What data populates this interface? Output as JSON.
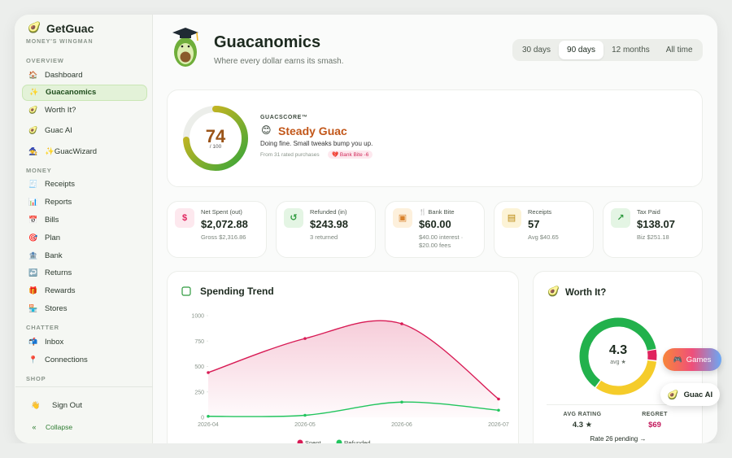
{
  "sidebar": {
    "brand": "GetGuac",
    "brand_icon": "🥑",
    "tagline": "MONEY'S WINGMAN",
    "sections": [
      {
        "title": "OVERVIEW",
        "items": [
          {
            "icon": "🏠",
            "label": "Dashboard"
          },
          {
            "icon": "✨",
            "label": "Guacanomics",
            "active": true
          },
          {
            "icon": "🥑",
            "label": "Worth It?"
          },
          {
            "icon": "🥑",
            "label": "Guac AI"
          },
          {
            "icon": "🧙",
            "label": "✨GuacWizard"
          }
        ]
      },
      {
        "title": "MONEY",
        "items": [
          {
            "icon": "🧾",
            "label": "Receipts"
          },
          {
            "icon": "📊",
            "label": "Reports"
          },
          {
            "icon": "📅",
            "label": "Bills"
          },
          {
            "icon": "🎯",
            "label": "Plan"
          },
          {
            "icon": "🏦",
            "label": "Bank"
          },
          {
            "icon": "↩️",
            "label": "Returns"
          },
          {
            "icon": "🎁",
            "label": "Rewards"
          },
          {
            "icon": "🏪",
            "label": "Stores"
          }
        ]
      },
      {
        "title": "CHATTER",
        "items": [
          {
            "icon": "📬",
            "label": "Inbox"
          },
          {
            "icon": "📍",
            "label": "Connections"
          }
        ]
      },
      {
        "title": "SHOP",
        "items": []
      }
    ],
    "sign_out": {
      "icon": "👋",
      "label": "Sign Out"
    },
    "collapse": {
      "icon": "«",
      "label": "Collapse"
    }
  },
  "header": {
    "title": "Guacanomics",
    "subtitle": "Where every dollar earns its smash.",
    "tabs": [
      "30 days",
      "90 days",
      "12 months",
      "All time"
    ],
    "active_tab": 1
  },
  "score": {
    "value": 74,
    "max": 100,
    "max_label": "/ 100",
    "kicker": "GUACSCORE™",
    "emoji": "😊",
    "name": "Steady Guac",
    "description": "Doing fine. Small tweaks bump you up.",
    "note": "From 31 rated purchases",
    "badge": "💔 Bank Bite -6"
  },
  "stats": [
    {
      "icon": "$",
      "label": "Net Spent (out)",
      "value": "$2,072.88",
      "sub": "Gross $2,316.86",
      "color": "#e0245e",
      "bg": "#fde8ee"
    },
    {
      "icon": "↺",
      "label": "Refunded (in)",
      "value": "$243.98",
      "sub": "3 returned",
      "color": "#2e9a3e",
      "bg": "#e4f5e4"
    },
    {
      "icon": "▣",
      "label": "🍴 Bank Bite",
      "value": "$60.00",
      "sub": "$40.00 interest · $20.00 fees",
      "color": "#d9822b",
      "bg": "#fdf0dc"
    },
    {
      "icon": "▤",
      "label": "Receipts",
      "value": "57",
      "sub": "Avg $40.65",
      "color": "#b8860b",
      "bg": "#fcf3d6"
    },
    {
      "icon": "↗",
      "label": "Tax Paid",
      "value": "$138.07",
      "sub": "Biz $251.18",
      "color": "#2e9a3e",
      "bg": "#e4f5e4"
    }
  ],
  "spending_trend": {
    "type": "line",
    "title": "Spending Trend",
    "categories": [
      "2026-04",
      "2026-05",
      "2026-06",
      "2026-07"
    ],
    "series": [
      {
        "name": "Spent",
        "color": "#d81b55",
        "values": [
          440,
          775,
          920,
          180
        ]
      },
      {
        "name": "Refunded",
        "color": "#22c55e",
        "values": [
          10,
          20,
          150,
          70
        ]
      }
    ],
    "ylim": [
      0,
      1000
    ],
    "yticks": [
      0,
      250,
      500,
      750,
      1000
    ],
    "area": true
  },
  "worth_it": {
    "icon": "🥑",
    "title": "Worth It?",
    "segments": [
      {
        "value": 5,
        "color": "#e0245e"
      },
      {
        "value": 33,
        "color": "#f5cc2a"
      },
      {
        "value": 62,
        "color": "#22b14c"
      }
    ],
    "center_value": "4.3",
    "center_label": "avg ★",
    "stats": [
      {
        "label": "AVG RATING",
        "value": "4.3 ★"
      },
      {
        "label": "REGRET",
        "value": "$69"
      }
    ],
    "link": "Rate 26 pending →"
  },
  "floating": [
    {
      "icon": "🎮",
      "label": "Games"
    },
    {
      "icon": "🥑",
      "label": "Guac AI"
    }
  ]
}
